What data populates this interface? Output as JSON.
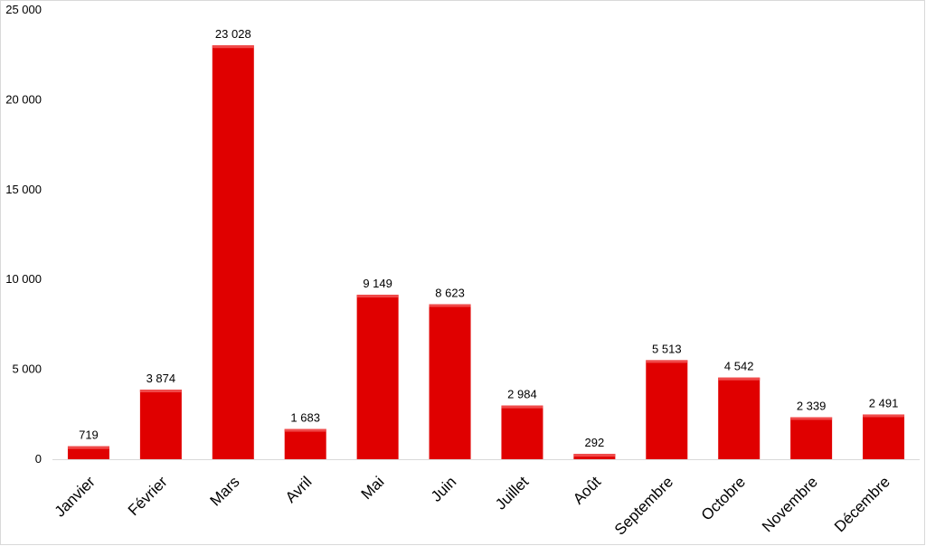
{
  "chart_data": {
    "type": "bar",
    "categories": [
      "Janvier",
      "Février",
      "Mars",
      "Avril",
      "Mai",
      "Juin",
      "Juillet",
      "Août",
      "Septembre",
      "Octobre",
      "Novembre",
      "Décembre"
    ],
    "values": [
      719,
      3874,
      23028,
      1683,
      9149,
      8623,
      2984,
      292,
      5513,
      4542,
      2339,
      2491
    ],
    "value_labels": [
      "719",
      "3 874",
      "23 028",
      "1 683",
      "9 149",
      "8 623",
      "2 984",
      "292",
      "5 513",
      "4 542",
      "2 339",
      "2 491"
    ],
    "y_ticks": [
      0,
      5000,
      10000,
      15000,
      20000,
      25000
    ],
    "y_tick_labels": [
      "0",
      "5 000",
      "10 000",
      "15 000",
      "20 000",
      "25 000"
    ],
    "ylim": [
      0,
      25000
    ],
    "title": "",
    "xlabel": "",
    "ylabel": "",
    "grid": false,
    "legend": false,
    "bar_color": "#e00000",
    "bar_top_color": "#f04a4a"
  }
}
